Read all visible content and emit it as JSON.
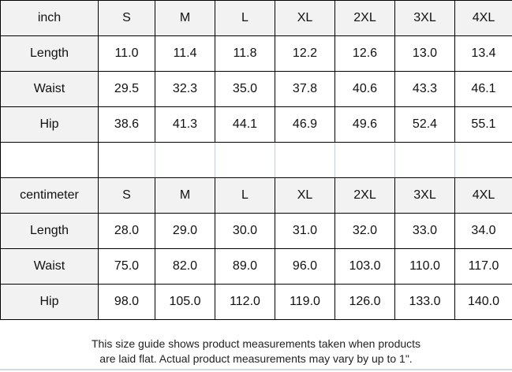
{
  "inch_table": {
    "unit": "inch",
    "sizes": [
      "S",
      "M",
      "L",
      "XL",
      "2XL",
      "3XL",
      "4XL"
    ],
    "rows": [
      {
        "label": "Length",
        "values": [
          "11.0",
          "11.4",
          "11.8",
          "12.2",
          "12.6",
          "13.0",
          "13.4"
        ]
      },
      {
        "label": "Waist",
        "values": [
          "29.5",
          "32.3",
          "35.0",
          "37.8",
          "40.6",
          "43.3",
          "46.1"
        ]
      },
      {
        "label": "Hip",
        "values": [
          "38.6",
          "41.3",
          "44.1",
          "46.9",
          "49.6",
          "52.4",
          "55.1"
        ]
      }
    ]
  },
  "cm_table": {
    "unit": "centimeter",
    "sizes": [
      "S",
      "M",
      "L",
      "XL",
      "2XL",
      "3XL",
      "4XL"
    ],
    "rows": [
      {
        "label": "Length",
        "values": [
          "28.0",
          "29.0",
          "30.0",
          "31.0",
          "32.0",
          "33.0",
          "34.0"
        ]
      },
      {
        "label": "Waist",
        "values": [
          "75.0",
          "82.0",
          "89.0",
          "96.0",
          "103.0",
          "110.0",
          "117.0"
        ]
      },
      {
        "label": "Hip",
        "values": [
          "98.0",
          "105.0",
          "112.0",
          "119.0",
          "126.0",
          "133.0",
          "140.0"
        ]
      }
    ]
  },
  "footer": {
    "line1": "This size guide shows product measurements taken when products",
    "line2": "are laid flat. Actual product measurements may vary by up to 1\"."
  },
  "colors": {
    "header_bg": "#f2f2f2",
    "border": "#000000"
  }
}
